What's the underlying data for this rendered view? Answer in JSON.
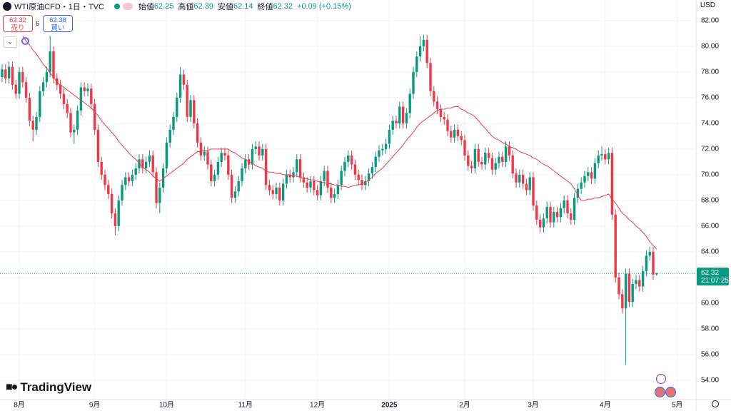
{
  "chart_data": {
    "type": "candlestick",
    "xlim": [
      -0.625,
      202.5
    ],
    "xticks": [
      {
        "value": 5,
        "label": "8月"
      },
      {
        "value": 27,
        "label": "9月"
      },
      {
        "value": 48,
        "label": "10月"
      },
      {
        "value": 71,
        "label": "11月"
      },
      {
        "value": 92,
        "label": "12月"
      },
      {
        "value": 113,
        "label": "2025"
      },
      {
        "value": 135,
        "label": "2月"
      },
      {
        "value": 155,
        "label": "3月"
      },
      {
        "value": 176,
        "label": "4月"
      },
      {
        "value": 197,
        "label": "5月"
      }
    ],
    "ylim": [
      52.5,
      83.6
    ],
    "yticks": [
      {
        "value": 54,
        "label": "54.00"
      },
      {
        "value": 56,
        "label": "56.00"
      },
      {
        "value": 58,
        "label": "58.00"
      },
      {
        "value": 60,
        "label": "60.00"
      },
      {
        "value": 62,
        "label": "62.00"
      },
      {
        "value": 64,
        "label": "64.00"
      },
      {
        "value": 66,
        "label": "66.00"
      },
      {
        "value": 68,
        "label": "68.00"
      },
      {
        "value": 70,
        "label": "70.00"
      },
      {
        "value": 72,
        "label": "72.00"
      },
      {
        "value": 74,
        "label": "74.00"
      },
      {
        "value": 76,
        "label": "76.00"
      },
      {
        "value": 78,
        "label": "78.00"
      },
      {
        "value": 80,
        "label": "80.00"
      },
      {
        "value": 82,
        "label": "82.00"
      }
    ],
    "grid": true,
    "up_color": "#089981",
    "down_color": "#f23645",
    "open": [
      77.6,
      78.2,
      77.5,
      78.4,
      77.0,
      76.3,
      78.0,
      77.2,
      76.0,
      74.2,
      73.5,
      74.5,
      76.5,
      77.2,
      78.0,
      79.6,
      77.5,
      77.0,
      76.3,
      75.5,
      74.8,
      73.3,
      73.5,
      75.0,
      76.8,
      76.5,
      76.7,
      75.5,
      73.5,
      71.0,
      70.0,
      69.2,
      68.5,
      67.0,
      66.0,
      68.0,
      69.2,
      69.8,
      69.5,
      70.0,
      70.5,
      71.2,
      70.5,
      71.0,
      71.5,
      70.2,
      67.8,
      69.0,
      70.5,
      72.5,
      73.5,
      74.5,
      76.0,
      77.8,
      77.0,
      74.5,
      75.8,
      74.0,
      72.5,
      71.5,
      71.8,
      70.8,
      69.5,
      70.0,
      71.0,
      71.7,
      71.5,
      70.0,
      68.2,
      68.7,
      69.5,
      70.5,
      71.2,
      70.8,
      72.0,
      72.2,
      71.5,
      72.0,
      69.2,
      68.8,
      68.5,
      69.0,
      68.0,
      69.3,
      70.0,
      69.8,
      70.2,
      71.2,
      69.8,
      69.4,
      69.0,
      69.5,
      68.8,
      68.4,
      69.5,
      70.3,
      69.0,
      68.2,
      68.5,
      69.2,
      70.3,
      71.0,
      71.5,
      70.8,
      70.0,
      69.6,
      69.2,
      69.5,
      70.1,
      70.6,
      71.4,
      71.9,
      72.0,
      72.4,
      73.5,
      74.2,
      74.0,
      75.3,
      74.0,
      74.8,
      76.3,
      78.0,
      79.2,
      80.0,
      80.5,
      78.7,
      76.5,
      75.7,
      75.1,
      74.5,
      74.3,
      73.4,
      72.9,
      73.5,
      73.0,
      72.7,
      71.5,
      70.7,
      70.5,
      72.0,
      71.0,
      70.8,
      71.7,
      71.3,
      70.4,
      70.9,
      71.4,
      71.0,
      72.2,
      71.5,
      70.1,
      69.4,
      70.0,
      69.3,
      68.8,
      69.8,
      67.6,
      66.5,
      65.9,
      66.6,
      67.5,
      66.3,
      67.1,
      66.7,
      67.4,
      68.0,
      67.0,
      66.5,
      68.2,
      68.9,
      69.4,
      69.9,
      70.2,
      69.7,
      70.9,
      71.5,
      71.6,
      71.2,
      71.7,
      66.9,
      62.0,
      60.7,
      59.6,
      62.3,
      60.1,
      61.5,
      61.8,
      61.3,
      62.5,
      63.7,
      64.0,
      62.25
    ],
    "high": [
      78.6,
      78.6,
      78.8,
      78.8,
      77.4,
      78.4,
      78.4,
      77.6,
      76.4,
      74.6,
      74.9,
      76.9,
      77.6,
      78.4,
      80.8,
      80.0,
      77.9,
      77.4,
      76.7,
      75.9,
      75.2,
      73.9,
      75.4,
      77.2,
      77.2,
      77.1,
      77.1,
      75.9,
      73.9,
      71.4,
      70.4,
      69.6,
      68.9,
      67.4,
      68.4,
      69.6,
      70.2,
      70.2,
      70.4,
      70.9,
      71.6,
      71.6,
      71.4,
      71.9,
      71.9,
      70.6,
      69.4,
      70.9,
      72.9,
      73.9,
      74.9,
      76.4,
      78.4,
      78.2,
      77.4,
      76.2,
      76.2,
      74.4,
      72.9,
      72.2,
      72.2,
      71.2,
      70.4,
      71.4,
      72.1,
      72.1,
      71.9,
      70.4,
      69.1,
      69.9,
      70.9,
      71.6,
      71.6,
      72.4,
      72.6,
      72.6,
      72.4,
      72.4,
      69.6,
      69.2,
      69.4,
      69.4,
      69.7,
      70.4,
      70.4,
      70.6,
      71.6,
      71.6,
      70.2,
      69.8,
      69.9,
      69.9,
      69.2,
      69.9,
      70.7,
      70.7,
      69.4,
      68.9,
      69.6,
      70.7,
      71.4,
      71.9,
      71.9,
      71.2,
      70.4,
      70.0,
      69.9,
      70.5,
      71.0,
      71.8,
      72.3,
      72.4,
      72.8,
      73.9,
      74.6,
      74.6,
      75.7,
      75.7,
      75.2,
      76.7,
      78.4,
      79.6,
      80.8,
      80.9,
      80.9,
      79.1,
      76.9,
      76.1,
      75.5,
      74.9,
      74.7,
      73.8,
      73.9,
      73.9,
      73.4,
      73.1,
      71.9,
      71.1,
      72.4,
      72.4,
      71.4,
      72.1,
      72.1,
      71.7,
      71.3,
      71.8,
      71.8,
      72.6,
      72.6,
      71.9,
      70.5,
      70.4,
      70.4,
      69.7,
      70.2,
      70.2,
      68.0,
      66.9,
      67.0,
      67.9,
      67.9,
      67.5,
      67.5,
      67.8,
      68.4,
      68.4,
      67.4,
      68.6,
      69.3,
      69.8,
      70.3,
      70.6,
      70.6,
      71.3,
      71.9,
      72.2,
      72.0,
      72.1,
      72.1,
      67.3,
      62.4,
      61.1,
      62.7,
      62.7,
      61.9,
      62.2,
      62.2,
      62.9,
      64.1,
      64.4,
      64.4,
      62.39
    ],
    "low": [
      77.2,
      77.1,
      77.1,
      76.6,
      75.9,
      75.9,
      76.8,
      75.6,
      73.8,
      72.6,
      73.1,
      74.1,
      76.1,
      76.8,
      77.6,
      77.1,
      76.6,
      75.9,
      75.1,
      74.4,
      72.9,
      72.4,
      73.1,
      74.6,
      76.1,
      76.1,
      75.1,
      73.1,
      70.6,
      69.6,
      68.8,
      68.1,
      66.6,
      65.3,
      65.6,
      67.6,
      68.8,
      69.1,
      69.1,
      69.6,
      70.1,
      70.1,
      70.1,
      70.6,
      69.8,
      67.4,
      67.0,
      68.6,
      70.1,
      72.1,
      73.1,
      74.1,
      75.6,
      76.6,
      74.1,
      74.1,
      73.6,
      72.1,
      71.1,
      71.1,
      70.4,
      69.1,
      69.1,
      69.6,
      70.6,
      71.1,
      69.6,
      67.8,
      67.8,
      68.3,
      69.1,
      70.1,
      70.4,
      70.4,
      71.6,
      71.1,
      71.1,
      68.8,
      68.4,
      68.1,
      68.1,
      67.6,
      67.6,
      68.9,
      69.4,
      69.4,
      69.8,
      69.4,
      69.0,
      68.6,
      68.6,
      68.4,
      68.0,
      68.0,
      69.1,
      68.6,
      67.8,
      67.8,
      68.1,
      68.8,
      69.9,
      70.6,
      70.4,
      69.6,
      69.2,
      68.8,
      68.8,
      69.1,
      69.7,
      70.2,
      71.0,
      71.5,
      71.6,
      72.0,
      73.1,
      73.6,
      73.6,
      73.6,
      73.6,
      74.4,
      75.9,
      77.6,
      78.8,
      79.6,
      78.3,
      76.1,
      75.3,
      74.7,
      74.1,
      73.9,
      73.0,
      72.5,
      72.5,
      72.6,
      72.3,
      71.1,
      70.3,
      70.1,
      70.1,
      70.6,
      70.4,
      70.4,
      70.9,
      70.0,
      70.0,
      70.5,
      70.6,
      70.6,
      71.1,
      69.7,
      69.0,
      69.0,
      68.9,
      68.4,
      68.4,
      67.2,
      66.1,
      65.5,
      65.5,
      66.2,
      65.9,
      65.9,
      66.3,
      66.3,
      67.0,
      66.6,
      66.1,
      66.1,
      67.8,
      68.5,
      69.0,
      69.5,
      69.3,
      69.3,
      70.5,
      71.1,
      70.8,
      70.8,
      66.5,
      61.6,
      60.3,
      59.2,
      55.2,
      59.7,
      59.7,
      61.1,
      60.9,
      60.9,
      62.1,
      63.3,
      61.83,
      62.14
    ],
    "close": [
      78.2,
      77.5,
      78.4,
      77.0,
      76.3,
      78.0,
      77.2,
      76.0,
      74.2,
      73.5,
      74.5,
      76.5,
      77.2,
      78.0,
      79.6,
      77.5,
      77.0,
      76.3,
      75.5,
      74.8,
      73.3,
      73.5,
      75.0,
      76.8,
      76.5,
      76.7,
      75.5,
      73.5,
      71.0,
      70.0,
      69.2,
      68.5,
      67.0,
      66.0,
      68.0,
      69.2,
      69.8,
      69.5,
      70.0,
      70.5,
      71.2,
      70.5,
      71.0,
      71.5,
      70.2,
      67.8,
      69.0,
      70.5,
      72.5,
      73.5,
      74.5,
      76.0,
      77.8,
      77.0,
      74.5,
      75.8,
      74.0,
      72.5,
      71.5,
      71.8,
      70.8,
      69.5,
      70.0,
      71.0,
      71.7,
      71.5,
      70.0,
      68.2,
      68.7,
      69.5,
      70.5,
      71.2,
      70.8,
      72.0,
      72.2,
      71.5,
      72.0,
      69.2,
      68.8,
      68.5,
      69.0,
      68.0,
      69.3,
      70.0,
      69.8,
      70.2,
      71.2,
      69.8,
      69.4,
      69.0,
      69.5,
      68.8,
      68.4,
      69.5,
      70.3,
      69.0,
      68.2,
      68.5,
      69.2,
      70.3,
      71.0,
      71.5,
      70.8,
      70.0,
      69.6,
      69.2,
      69.5,
      70.1,
      70.6,
      71.4,
      71.9,
      72.0,
      72.4,
      73.5,
      74.2,
      74.0,
      75.3,
      74.0,
      74.8,
      76.3,
      78.0,
      79.2,
      80.0,
      80.5,
      78.7,
      76.5,
      75.7,
      75.1,
      74.5,
      74.3,
      73.4,
      72.9,
      73.5,
      73.0,
      72.7,
      71.5,
      70.7,
      70.5,
      72.0,
      71.0,
      70.8,
      71.7,
      71.3,
      70.4,
      70.9,
      71.4,
      71.0,
      72.2,
      71.5,
      70.1,
      69.4,
      70.0,
      69.3,
      68.8,
      69.8,
      67.6,
      66.5,
      65.9,
      66.6,
      67.5,
      66.3,
      67.1,
      66.7,
      67.4,
      68.0,
      67.0,
      66.5,
      68.2,
      68.9,
      69.4,
      69.9,
      70.2,
      69.7,
      70.9,
      71.5,
      71.6,
      71.2,
      71.7,
      66.9,
      62.0,
      60.7,
      59.6,
      62.3,
      60.1,
      61.5,
      61.8,
      61.3,
      62.5,
      63.7,
      64.0,
      62.23,
      62.32
    ],
    "moving_average": {
      "color": "#f23645",
      "values": [
        null,
        null,
        null,
        null,
        null,
        null,
        80.8,
        80.4,
        80.1,
        79.7,
        79.4,
        79.0,
        78.6,
        78.3,
        77.9,
        77.6,
        77.2,
        77.0,
        76.8,
        76.6,
        76.4,
        76.2,
        76.0,
        75.8,
        75.6,
        75.4,
        75.2,
        74.9,
        74.6,
        74.2,
        73.9,
        73.6,
        73.3,
        73.0,
        72.6,
        72.3,
        72.0,
        71.7,
        71.4,
        71.2,
        70.9,
        70.6,
        70.4,
        70.2,
        69.9,
        69.7,
        69.5,
        69.7,
        69.9,
        70.1,
        70.3,
        70.5,
        70.7,
        70.9,
        71.2,
        71.4,
        71.6,
        71.8,
        71.8,
        71.9,
        71.9,
        72.0,
        72.0,
        72.0,
        72.0,
        72.0,
        72.0,
        71.8,
        71.7,
        71.5,
        71.3,
        71.2,
        71.0,
        70.9,
        70.7,
        70.6,
        70.5,
        70.3,
        70.2,
        70.2,
        70.1,
        70.1,
        70.0,
        70.0,
        70.0,
        69.9,
        69.9,
        69.8,
        69.7,
        69.7,
        69.6,
        69.6,
        69.5,
        69.4,
        69.4,
        69.3,
        69.3,
        69.2,
        69.2,
        69.1,
        69.1,
        69.0,
        69.1,
        69.2,
        69.2,
        69.3,
        69.4,
        69.6,
        69.8,
        70.1,
        70.3,
        70.5,
        70.8,
        71.1,
        71.4,
        71.7,
        72.0,
        72.3,
        72.7,
        73.0,
        73.3,
        73.7,
        74.0,
        74.2,
        74.4,
        74.6,
        74.8,
        75.0,
        75.1,
        75.1,
        75.2,
        75.2,
        75.3,
        75.3,
        75.1,
        75.0,
        74.8,
        74.7,
        74.5,
        74.2,
        73.9,
        73.6,
        73.3,
        73.0,
        72.8,
        72.7,
        72.5,
        72.4,
        72.2,
        72.1,
        72.0,
        71.8,
        71.7,
        71.6,
        71.5,
        71.3,
        71.2,
        71.0,
        70.8,
        70.7,
        70.5,
        70.3,
        70.1,
        69.9,
        69.7,
        69.5,
        69.3,
        68.9,
        68.4,
        68.0,
        68.0,
        68.1,
        68.1,
        68.2,
        68.2,
        68.3,
        68.4,
        68.5,
        68.1,
        67.8,
        67.4,
        67.0,
        66.8,
        66.5,
        66.3,
        66.0,
        65.8,
        65.5,
        65.2,
        64.8,
        64.5,
        64.2
      ]
    }
  },
  "ui": {
    "symbol": "WTI原油CFD・1日・TVC",
    "ohlc": [
      {
        "label": "始値",
        "value": 62.25
      },
      {
        "label": "高値",
        "value": 62.39
      },
      {
        "label": "安値",
        "value": 62.14
      },
      {
        "label": "終値",
        "value": 62.32
      }
    ],
    "change": "+0.09 (+0.15%)",
    "sell": {
      "price": 62.32,
      "label": "売り"
    },
    "spread": 6,
    "buy": {
      "price": 62.38,
      "label": "買い"
    },
    "currency": "USD",
    "last_price": 62.32,
    "countdown": "21:07:25",
    "brand": "TradingView"
  }
}
